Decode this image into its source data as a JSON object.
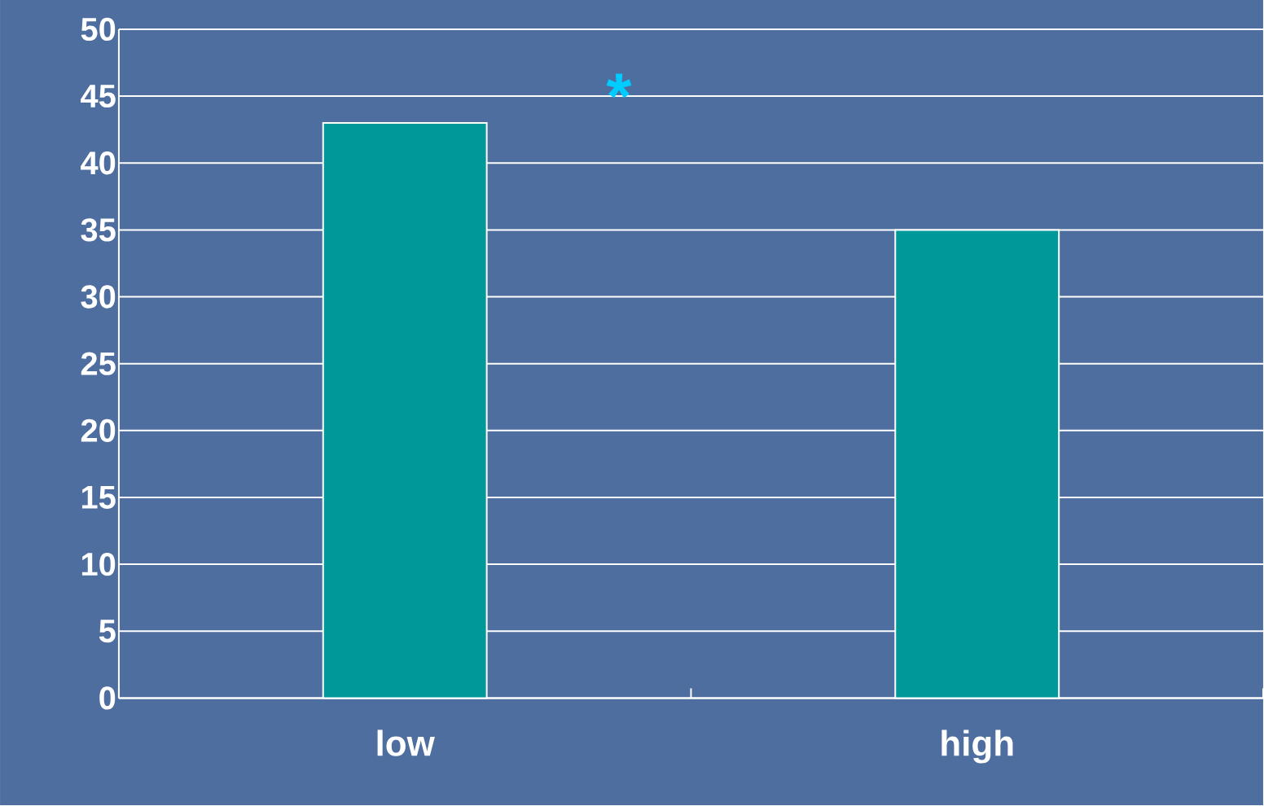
{
  "chart_data": {
    "type": "bar",
    "categories": [
      "low",
      "high"
    ],
    "values": [
      43,
      35
    ],
    "color": "#009999",
    "ylim": [
      0,
      50
    ],
    "yticks": [
      0,
      5,
      10,
      15,
      20,
      25,
      30,
      35,
      40,
      45,
      50
    ],
    "grid": "y",
    "annotations": [
      "*"
    ]
  }
}
